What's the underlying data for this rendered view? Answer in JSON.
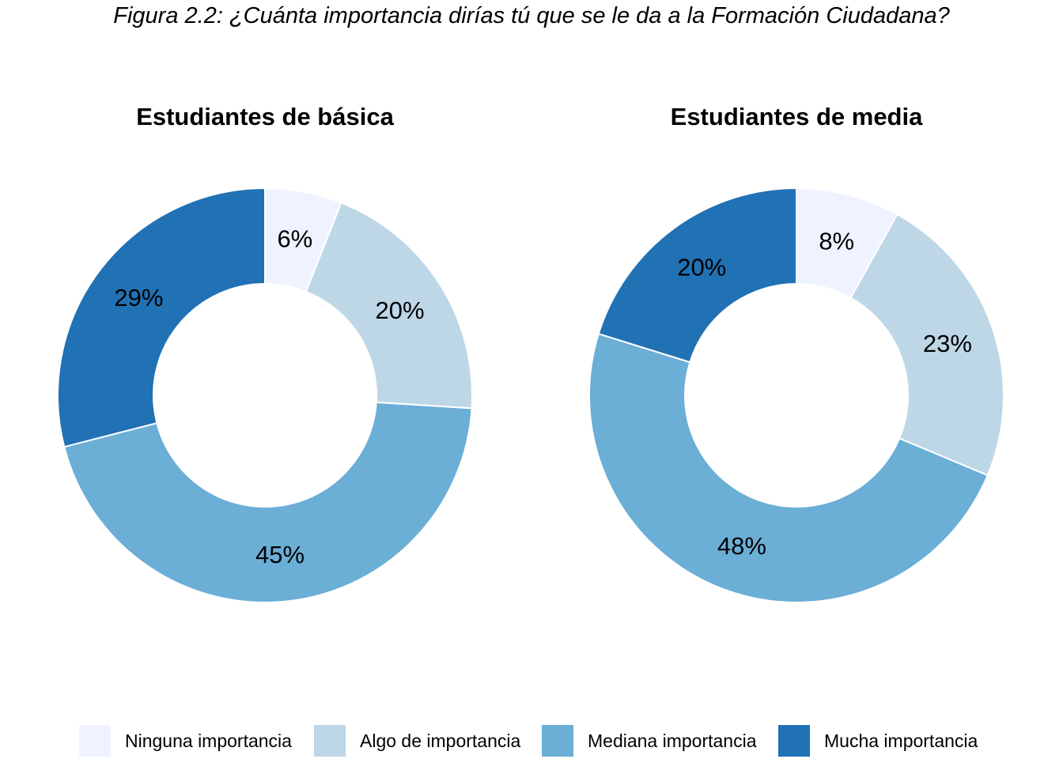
{
  "title": "Figura 2.2: ¿Cuánta importancia dirías tú que se le da a la Formación Ciudadana?",
  "chart_data": [
    {
      "type": "pie",
      "title": "Estudiantes de básica",
      "categories": [
        "Ninguna importancia",
        "Algo de importancia",
        "Mediana importancia",
        "Mucha importancia"
      ],
      "values": [
        6,
        20,
        45,
        29
      ],
      "labels": [
        "6%",
        "20%",
        "45%",
        "29%"
      ]
    },
    {
      "type": "pie",
      "title": "Estudiantes de media",
      "categories": [
        "Ninguna importancia",
        "Algo de importancia",
        "Mediana importancia",
        "Mucha importancia"
      ],
      "values": [
        8,
        23,
        48,
        20
      ],
      "labels": [
        "8%",
        "23%",
        "48%",
        "20%"
      ]
    }
  ],
  "legend": {
    "position": "bottom",
    "items": [
      "Ninguna importancia",
      "Algo de importancia",
      "Mediana importancia",
      "Mucha importancia"
    ]
  },
  "colors": [
    "#eff3ff",
    "#bdd7e7",
    "#6baed6",
    "#2171b5"
  ]
}
